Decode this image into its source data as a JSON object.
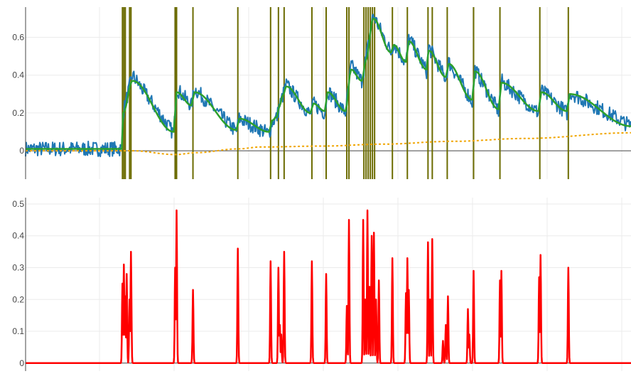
{
  "chart_data": [
    {
      "type": "line",
      "title": "",
      "xlabel": "",
      "ylabel": "",
      "xlim": [
        0,
        850
      ],
      "ylim": [
        -0.15,
        0.76
      ],
      "yticks": [
        {
          "value": 0,
          "label": "0"
        },
        {
          "value": 0.2,
          "label": "0.2"
        },
        {
          "value": 0.4,
          "label": "0.4"
        },
        {
          "value": 0.6,
          "label": "0.6"
        }
      ],
      "grid": true,
      "legend": "none",
      "event_lines": [
        136,
        138,
        140,
        146,
        148,
        210,
        212,
        235,
        298,
        344,
        355,
        363,
        402,
        422,
        451,
        454,
        475,
        478,
        481,
        484,
        487,
        490,
        515,
        536,
        565,
        571,
        592,
        629,
        666,
        722,
        762
      ],
      "series": [
        {
          "role": "raw-signal",
          "color": "#1f77b4",
          "style": "solid",
          "keypoints": [
            [
              0,
              0.01
            ],
            [
              135,
              0.01
            ],
            [
              137,
              0.2
            ],
            [
              150,
              0.4
            ],
            [
              208,
              0.09
            ],
            [
              212,
              0.33
            ],
            [
              233,
              0.24
            ],
            [
              237,
              0.33
            ],
            [
              296,
              0.1
            ],
            [
              300,
              0.17
            ],
            [
              342,
              0.09
            ],
            [
              346,
              0.15
            ],
            [
              353,
              0.18
            ],
            [
              356,
              0.23
            ],
            [
              361,
              0.29
            ],
            [
              366,
              0.35
            ],
            [
              400,
              0.19
            ],
            [
              404,
              0.25
            ],
            [
              420,
              0.2
            ],
            [
              424,
              0.32
            ],
            [
              449,
              0.2
            ],
            [
              457,
              0.45
            ],
            [
              472,
              0.37
            ],
            [
              478,
              0.49
            ],
            [
              488,
              0.72
            ],
            [
              513,
              0.52
            ],
            [
              517,
              0.57
            ],
            [
              534,
              0.46
            ],
            [
              538,
              0.6
            ],
            [
              563,
              0.42
            ],
            [
              566,
              0.55
            ],
            [
              590,
              0.38
            ],
            [
              594,
              0.47
            ],
            [
              627,
              0.26
            ],
            [
              631,
              0.43
            ],
            [
              664,
              0.21
            ],
            [
              668,
              0.37
            ],
            [
              720,
              0.2
            ],
            [
              724,
              0.32
            ],
            [
              760,
              0.2
            ],
            [
              764,
              0.31
            ],
            [
              850,
              0.13
            ]
          ],
          "noise": 0.04
        },
        {
          "role": "smoothed-signal",
          "color": "#2ca02c",
          "style": "solid",
          "keypoints": [
            [
              0,
              0.01
            ],
            [
              135,
              0.01
            ],
            [
              137,
              0.2
            ],
            [
              150,
              0.37
            ],
            [
              208,
              0.1
            ],
            [
              212,
              0.31
            ],
            [
              233,
              0.24
            ],
            [
              237,
              0.31
            ],
            [
              296,
              0.11
            ],
            [
              300,
              0.17
            ],
            [
              342,
              0.1
            ],
            [
              346,
              0.16
            ],
            [
              353,
              0.18
            ],
            [
              356,
              0.23
            ],
            [
              361,
              0.29
            ],
            [
              366,
              0.34
            ],
            [
              400,
              0.2
            ],
            [
              404,
              0.25
            ],
            [
              420,
              0.21
            ],
            [
              424,
              0.31
            ],
            [
              449,
              0.21
            ],
            [
              457,
              0.43
            ],
            [
              472,
              0.37
            ],
            [
              478,
              0.48
            ],
            [
              488,
              0.7
            ],
            [
              513,
              0.52
            ],
            [
              517,
              0.56
            ],
            [
              534,
              0.47
            ],
            [
              538,
              0.58
            ],
            [
              563,
              0.43
            ],
            [
              566,
              0.53
            ],
            [
              590,
              0.39
            ],
            [
              594,
              0.46
            ],
            [
              627,
              0.27
            ],
            [
              631,
              0.42
            ],
            [
              664,
              0.22
            ],
            [
              668,
              0.36
            ],
            [
              720,
              0.21
            ],
            [
              724,
              0.31
            ],
            [
              760,
              0.21
            ],
            [
              764,
              0.3
            ],
            [
              850,
              0.13
            ]
          ]
        },
        {
          "role": "baseline",
          "color": "#f0a500",
          "style": "dotted",
          "keypoints": [
            [
              0,
              0.0
            ],
            [
              135,
              0.0
            ],
            [
              150,
              0.0
            ],
            [
              210,
              -0.02
            ],
            [
              240,
              -0.01
            ],
            [
              298,
              0.01
            ],
            [
              330,
              0.02
            ],
            [
              420,
              0.025
            ],
            [
              500,
              0.035
            ],
            [
              600,
              0.05
            ],
            [
              700,
              0.065
            ],
            [
              850,
              0.095
            ]
          ]
        }
      ]
    },
    {
      "type": "line",
      "title": "",
      "xlabel": "",
      "ylabel": "",
      "xlim": [
        0,
        850
      ],
      "ylim": [
        -0.025,
        0.52
      ],
      "yticks": [
        {
          "value": 0,
          "label": "0"
        },
        {
          "value": 0.1,
          "label": "0.1"
        },
        {
          "value": 0.2,
          "label": "0.2"
        },
        {
          "value": 0.3,
          "label": "0.3"
        },
        {
          "value": 0.4,
          "label": "0.4"
        },
        {
          "value": 0.5,
          "label": "0.5"
        }
      ],
      "grid": true,
      "legend": "none",
      "series": [
        {
          "role": "event-intensity",
          "color": "#ff0000",
          "style": "solid",
          "peaks": [
            [
              136,
              0.25
            ],
            [
              138,
              0.31
            ],
            [
              140,
              0.21
            ],
            [
              142,
              0.28
            ],
            [
              146,
              0.2
            ],
            [
              148,
              0.35
            ],
            [
              210,
              0.3
            ],
            [
              212,
              0.48
            ],
            [
              235,
              0.23
            ],
            [
              298,
              0.36
            ],
            [
              344,
              0.32
            ],
            [
              355,
              0.3
            ],
            [
              357,
              0.12
            ],
            [
              359,
              0.09
            ],
            [
              363,
              0.35
            ],
            [
              402,
              0.32
            ],
            [
              422,
              0.28
            ],
            [
              451,
              0.18
            ],
            [
              454,
              0.45
            ],
            [
              474,
              0.45
            ],
            [
              477,
              0.2
            ],
            [
              480,
              0.48
            ],
            [
              483,
              0.24
            ],
            [
              486,
              0.4
            ],
            [
              489,
              0.41
            ],
            [
              492,
              0.2
            ],
            [
              496,
              0.26
            ],
            [
              515,
              0.33
            ],
            [
              534,
              0.22
            ],
            [
              536,
              0.33
            ],
            [
              538,
              0.23
            ],
            [
              565,
              0.38
            ],
            [
              568,
              0.2
            ],
            [
              571,
              0.39
            ],
            [
              586,
              0.07
            ],
            [
              590,
              0.12
            ],
            [
              593,
              0.21
            ],
            [
              621,
              0.17
            ],
            [
              623,
              0.09
            ],
            [
              629,
              0.29
            ],
            [
              666,
              0.26
            ],
            [
              668,
              0.29
            ],
            [
              721,
              0.27
            ],
            [
              723,
              0.34
            ],
            [
              762,
              0.3
            ]
          ]
        }
      ]
    }
  ]
}
